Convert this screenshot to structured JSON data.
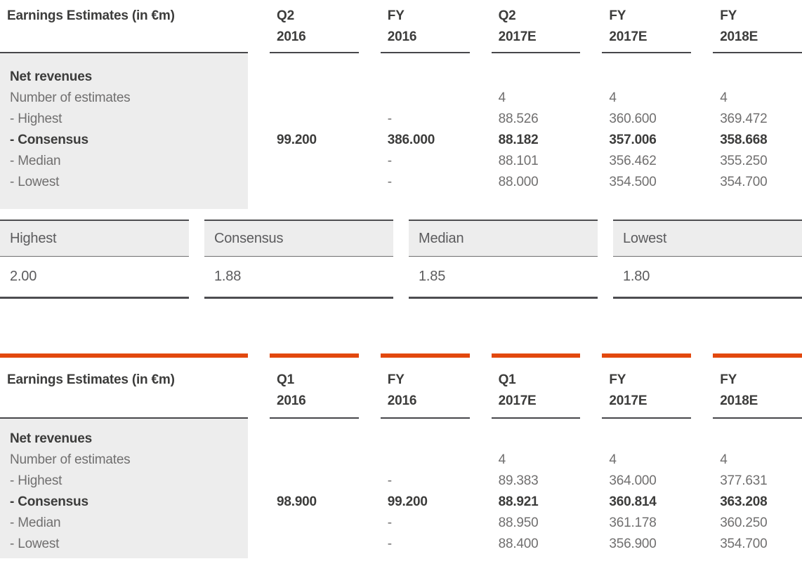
{
  "colors": {
    "accent": "#E2480E",
    "dark_text": "#3C3C3B",
    "gray_text": "#706F6F",
    "light_gray_bg": "#EDEDED",
    "rule_dark": "#47474A"
  },
  "top_table": {
    "title": "Earnings Estimates (in €m)",
    "columns": [
      {
        "period": "Q2",
        "year": "2016"
      },
      {
        "period": "FY",
        "year": "2016"
      },
      {
        "period": "Q2",
        "year": "2017E"
      },
      {
        "period": "FY",
        "year": "2017E"
      },
      {
        "period": "FY",
        "year": "2018E"
      }
    ],
    "row_labels": [
      "Net revenues",
      "Number of estimates",
      "- Highest",
      "- Consensus",
      "- Median",
      "- Lowest"
    ],
    "bold_rows": [
      0,
      3
    ],
    "values": [
      [
        "",
        "",
        "",
        "99.200",
        "",
        ""
      ],
      [
        "",
        "",
        "-",
        "386.000",
        "-",
        "-"
      ],
      [
        "",
        "4",
        "88.526",
        "88.182",
        "88.101",
        "88.000"
      ],
      [
        "",
        "4",
        "360.600",
        "357.006",
        "356.462",
        "354.500"
      ],
      [
        "",
        "4",
        "369.472",
        "358.668",
        "355.250",
        "354.700"
      ]
    ]
  },
  "summary_cards": [
    {
      "label": "Highest",
      "value": "2.00"
    },
    {
      "label": "Consensus",
      "value": "1.88"
    },
    {
      "label": "Median",
      "value": "1.85"
    },
    {
      "label": "Lowest",
      "value": "1.80"
    }
  ],
  "bottom_table": {
    "title": "Earnings Estimates (in €m)",
    "columns": [
      {
        "period": "Q1",
        "year": "2016"
      },
      {
        "period": "FY",
        "year": "2016"
      },
      {
        "period": "Q1",
        "year": "2017E"
      },
      {
        "period": "FY",
        "year": "2017E"
      },
      {
        "period": "FY",
        "year": "2018E"
      }
    ],
    "row_labels": [
      "Net revenues",
      "Number of estimates",
      "- Highest",
      "- Consensus",
      "- Median",
      "- Lowest"
    ],
    "bold_rows": [
      0,
      3
    ],
    "values": [
      [
        "",
        "",
        "",
        "98.900",
        "",
        ""
      ],
      [
        "",
        "",
        "-",
        "99.200",
        "-",
        "-"
      ],
      [
        "",
        "4",
        "89.383",
        "88.921",
        "88.950",
        "88.400"
      ],
      [
        "",
        "4",
        "364.000",
        "360.814",
        "361.178",
        "356.900"
      ],
      [
        "",
        "4",
        "377.631",
        "363.208",
        "360.250",
        "354.700"
      ]
    ]
  }
}
